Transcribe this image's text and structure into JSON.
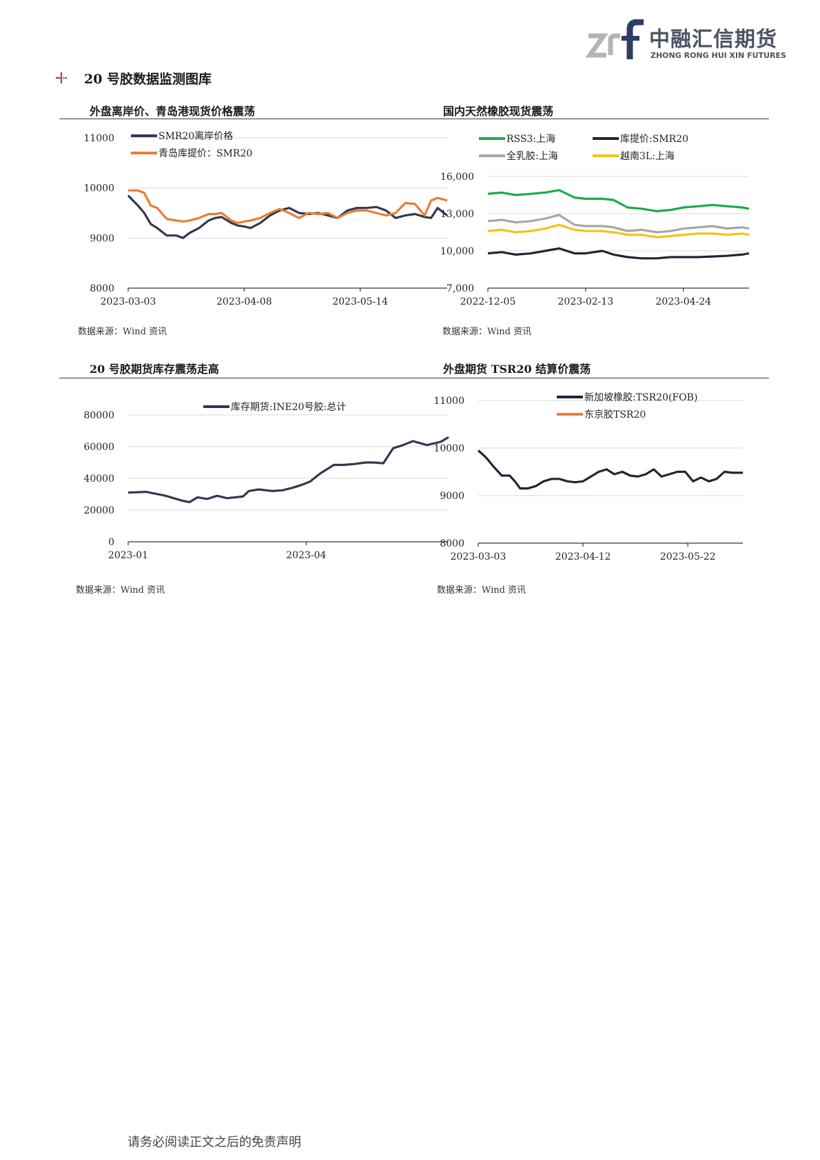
{
  "header": {
    "logo_cn": "中融汇信期货",
    "logo_en": "ZHONG RONG HUI XIN FUTURES",
    "logo_icon": "znf-logo-icon"
  },
  "section": {
    "title": "20 号胶数据监测图库",
    "icon": "diamond-bullet-icon"
  },
  "charts": [
    {
      "title": "外盘离岸价、青岛港现货价格震荡",
      "source": "数据来源：Wind 资讯"
    },
    {
      "title": "国内天然橡胶现货震荡",
      "source": "数据来源：Wind 资讯"
    },
    {
      "title": "20 号胶期货库存震荡走高",
      "source": "数据来源：Wind 资讯"
    },
    {
      "title": "外盘期货 TSR20 结算价震荡",
      "source": "数据来源：Wind 资讯"
    }
  ],
  "footer": {
    "disclaimer": "请务必阅读正文之后的免责声明"
  },
  "chart_data": [
    {
      "type": "line",
      "ylim": [
        8000,
        11000
      ],
      "yticks": [
        "11000",
        "10000",
        "9000",
        "8000"
      ],
      "yticks_values": [
        11000,
        10000,
        9000,
        8000
      ],
      "xlim": [
        "2023-03-03",
        "2023-06-10"
      ],
      "xticks": [
        "2023-03-03",
        "2023-04-08",
        "2023-05-14"
      ],
      "grid": true,
      "legend": "top-left",
      "series": [
        {
          "name": "SMR20离岸价格",
          "color": "#2e3a4e",
          "x": [
            "2023-03-03",
            "2023-03-06",
            "2023-03-08",
            "2023-03-10",
            "2023-03-12",
            "2023-03-15",
            "2023-03-18",
            "2023-03-20",
            "2023-03-22",
            "2023-03-25",
            "2023-03-28",
            "2023-03-30",
            "2023-04-01",
            "2023-04-04",
            "2023-04-06",
            "2023-04-08",
            "2023-04-10",
            "2023-04-13",
            "2023-04-16",
            "2023-04-19",
            "2023-04-22",
            "2023-04-25",
            "2023-04-28",
            "2023-05-01",
            "2023-05-04",
            "2023-05-07",
            "2023-05-10",
            "2023-05-13",
            "2023-05-16",
            "2023-05-19",
            "2023-05-22",
            "2023-05-25",
            "2023-05-28",
            "2023-05-31",
            "2023-06-03",
            "2023-06-05",
            "2023-06-07",
            "2023-06-10"
          ],
          "y": [
            9850,
            9650,
            9500,
            9280,
            9200,
            9050,
            9050,
            9000,
            9100,
            9200,
            9350,
            9400,
            9420,
            9300,
            9250,
            9230,
            9200,
            9300,
            9450,
            9550,
            9600,
            9500,
            9480,
            9500,
            9450,
            9400,
            9550,
            9600,
            9600,
            9620,
            9550,
            9400,
            9450,
            9480,
            9420,
            9400,
            9600,
            9450
          ]
        },
        {
          "name": "青岛库提价：SMR20",
          "color": "#e87d35",
          "x": [
            "2023-03-03",
            "2023-03-06",
            "2023-03-08",
            "2023-03-10",
            "2023-03-12",
            "2023-03-15",
            "2023-03-18",
            "2023-03-20",
            "2023-03-22",
            "2023-03-25",
            "2023-03-28",
            "2023-03-30",
            "2023-04-01",
            "2023-04-04",
            "2023-04-06",
            "2023-04-08",
            "2023-04-10",
            "2023-04-13",
            "2023-04-16",
            "2023-04-19",
            "2023-04-22",
            "2023-04-25",
            "2023-04-28",
            "2023-05-01",
            "2023-05-04",
            "2023-05-07",
            "2023-05-10",
            "2023-05-13",
            "2023-05-16",
            "2023-05-19",
            "2023-05-22",
            "2023-05-25",
            "2023-05-28",
            "2023-05-31",
            "2023-06-03",
            "2023-06-05",
            "2023-06-07",
            "2023-06-10"
          ],
          "y": [
            9950,
            9950,
            9900,
            9650,
            9600,
            9380,
            9350,
            9330,
            9350,
            9400,
            9480,
            9480,
            9500,
            9350,
            9300,
            9330,
            9350,
            9400,
            9500,
            9580,
            9500,
            9400,
            9500,
            9480,
            9500,
            9400,
            9500,
            9550,
            9550,
            9500,
            9450,
            9500,
            9700,
            9680,
            9450,
            9750,
            9800,
            9750
          ]
        }
      ]
    },
    {
      "type": "line",
      "ylim": [
        7000,
        16000
      ],
      "yticks": [
        "16,000",
        "13,000",
        "10,000",
        "7,000"
      ],
      "yticks_values": [
        16000,
        13000,
        10000,
        7000
      ],
      "xlim": [
        "2022-12-05",
        "2023-06-10"
      ],
      "xticks": [
        "2022-12-05",
        "2023-02-13",
        "2023-04-24"
      ],
      "grid": true,
      "legend": "top",
      "series": [
        {
          "name": "RSS3:上海",
          "color": "#1bab4a",
          "x": [
            "2022-12-05",
            "2022-12-15",
            "2022-12-25",
            "2023-01-05",
            "2023-01-15",
            "2023-01-25",
            "2023-02-05",
            "2023-02-13",
            "2023-02-25",
            "2023-03-05",
            "2023-03-15",
            "2023-03-25",
            "2023-04-05",
            "2023-04-15",
            "2023-04-24",
            "2023-05-05",
            "2023-05-15",
            "2023-05-25",
            "2023-06-05",
            "2023-06-10"
          ],
          "y": [
            14600,
            14700,
            14500,
            14600,
            14700,
            14900,
            14300,
            14200,
            14200,
            14100,
            13500,
            13400,
            13200,
            13300,
            13500,
            13600,
            13700,
            13600,
            13500,
            13400
          ]
        },
        {
          "name": "库提价:SMR20",
          "color": "#1d2636",
          "x": [
            "2022-12-05",
            "2022-12-15",
            "2022-12-25",
            "2023-01-05",
            "2023-01-15",
            "2023-01-25",
            "2023-02-05",
            "2023-02-13",
            "2023-02-25",
            "2023-03-05",
            "2023-03-15",
            "2023-03-25",
            "2023-04-05",
            "2023-04-15",
            "2023-04-24",
            "2023-05-05",
            "2023-05-15",
            "2023-05-25",
            "2023-06-05",
            "2023-06-10"
          ],
          "y": [
            9800,
            9900,
            9700,
            9800,
            10000,
            10200,
            9800,
            9800,
            10000,
            9700,
            9500,
            9400,
            9400,
            9500,
            9500,
            9500,
            9550,
            9600,
            9700,
            9800
          ]
        },
        {
          "name": "全乳胶:上海",
          "color": "#a6a6a6",
          "x": [
            "2022-12-05",
            "2022-12-15",
            "2022-12-25",
            "2023-01-05",
            "2023-01-15",
            "2023-01-25",
            "2023-02-05",
            "2023-02-13",
            "2023-02-25",
            "2023-03-05",
            "2023-03-15",
            "2023-03-25",
            "2023-04-05",
            "2023-04-15",
            "2023-04-24",
            "2023-05-05",
            "2023-05-15",
            "2023-05-25",
            "2023-06-05",
            "2023-06-10"
          ],
          "y": [
            12400,
            12500,
            12300,
            12400,
            12600,
            12900,
            12100,
            12000,
            12000,
            11900,
            11600,
            11700,
            11500,
            11600,
            11800,
            11900,
            12000,
            11800,
            11900,
            11800
          ]
        },
        {
          "name": "越南3L:上海",
          "color": "#f2c218",
          "x": [
            "2022-12-05",
            "2022-12-15",
            "2022-12-25",
            "2023-01-05",
            "2023-01-15",
            "2023-01-25",
            "2023-02-05",
            "2023-02-13",
            "2023-02-25",
            "2023-03-05",
            "2023-03-15",
            "2023-03-25",
            "2023-04-05",
            "2023-04-15",
            "2023-04-24",
            "2023-05-05",
            "2023-05-15",
            "2023-05-25",
            "2023-06-05",
            "2023-06-10"
          ],
          "y": [
            11600,
            11700,
            11500,
            11600,
            11800,
            12100,
            11700,
            11600,
            11600,
            11500,
            11300,
            11300,
            11100,
            11200,
            11300,
            11400,
            11400,
            11300,
            11400,
            11300
          ]
        }
      ]
    },
    {
      "type": "line",
      "ylim": [
        0,
        80000
      ],
      "yticks": [
        "80000",
        "60000",
        "40000",
        "20000",
        "0"
      ],
      "yticks_values": [
        80000,
        60000,
        40000,
        20000,
        0
      ],
      "xlim": [
        "2023-01-01",
        "2023-06-12"
      ],
      "xticks": [
        "2023-01",
        "2023-04"
      ],
      "xticks_values": [
        "2023-01-01",
        "2023-04-01"
      ],
      "grid": true,
      "legend": "top-right",
      "series": [
        {
          "name": "库存期货:INE20号胶:总计",
          "color": "#2e3a4e",
          "x": [
            "2023-01-01",
            "2023-01-10",
            "2023-01-20",
            "2023-01-28",
            "2023-02-01",
            "2023-02-05",
            "2023-02-10",
            "2023-02-15",
            "2023-02-20",
            "2023-02-28",
            "2023-03-03",
            "2023-03-08",
            "2023-03-15",
            "2023-03-20",
            "2023-03-25",
            "2023-03-30",
            "2023-04-03",
            "2023-04-08",
            "2023-04-15",
            "2023-04-20",
            "2023-04-25",
            "2023-05-01",
            "2023-05-05",
            "2023-05-10",
            "2023-05-15",
            "2023-05-20",
            "2023-05-25",
            "2023-06-01",
            "2023-06-08",
            "2023-06-12"
          ],
          "y": [
            31000,
            31500,
            29000,
            26000,
            25000,
            28000,
            27000,
            29000,
            27500,
            28500,
            32000,
            33000,
            32000,
            32500,
            34000,
            36000,
            38000,
            43000,
            48500,
            48500,
            49000,
            50000,
            50000,
            49500,
            59000,
            61000,
            63500,
            61000,
            63000,
            66000
          ]
        }
      ]
    },
    {
      "type": "line",
      "ylim": [
        8000,
        11000
      ],
      "yticks": [
        "11000",
        "10000",
        "9000",
        "8000"
      ],
      "yticks_values": [
        11000,
        10000,
        9000,
        8000
      ],
      "xlim": [
        "2023-03-03",
        "2023-06-12"
      ],
      "xticks": [
        "2023-03-03",
        "2023-04-12",
        "2023-05-22"
      ],
      "grid": true,
      "legend": "top-center",
      "series": [
        {
          "name": "新加坡橡胶:TSR20(FOB)",
          "color": "#1d2636",
          "x": [
            "2023-03-03",
            "2023-03-06",
            "2023-03-09",
            "2023-03-12",
            "2023-03-15",
            "2023-03-17",
            "2023-03-19",
            "2023-03-22",
            "2023-03-25",
            "2023-03-28",
            "2023-03-31",
            "2023-04-03",
            "2023-04-06",
            "2023-04-09",
            "2023-04-12",
            "2023-04-15",
            "2023-04-18",
            "2023-04-21",
            "2023-04-24",
            "2023-04-27",
            "2023-04-30",
            "2023-05-03",
            "2023-05-06",
            "2023-05-09",
            "2023-05-12",
            "2023-05-15",
            "2023-05-18",
            "2023-05-21",
            "2023-05-24",
            "2023-05-27",
            "2023-05-30",
            "2023-06-02",
            "2023-06-05",
            "2023-06-08",
            "2023-06-12"
          ],
          "y": [
            9950,
            9800,
            9600,
            9420,
            9420,
            9300,
            9150,
            9150,
            9200,
            9300,
            9350,
            9350,
            9300,
            9280,
            9300,
            9400,
            9500,
            9550,
            9450,
            9500,
            9420,
            9400,
            9450,
            9550,
            9400,
            9450,
            9500,
            9500,
            9300,
            9380,
            9300,
            9350,
            9500,
            9480,
            9480
          ]
        },
        {
          "name": "东京胶TSR20",
          "color": "#e87d35",
          "x": [],
          "y": []
        }
      ]
    }
  ]
}
